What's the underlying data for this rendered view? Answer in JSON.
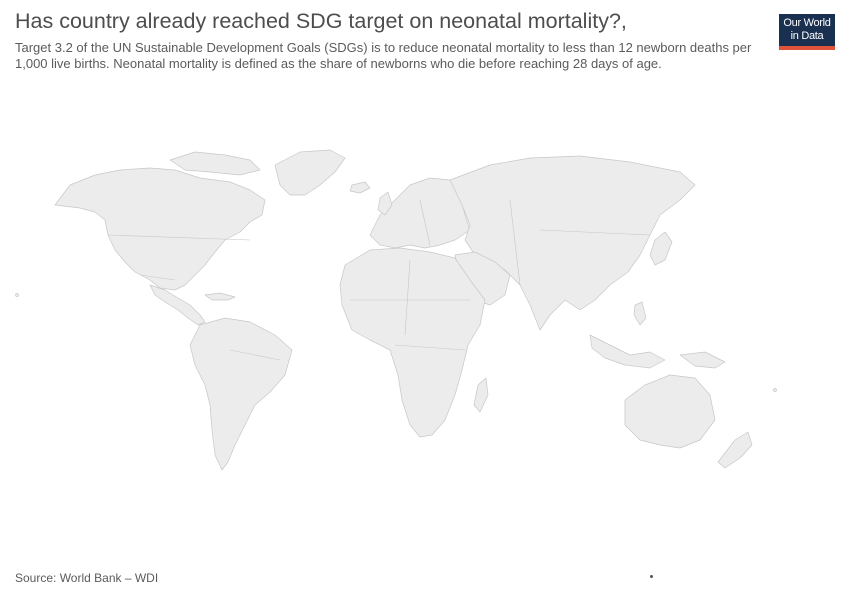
{
  "header": {
    "title": "Has country already reached SDG target on neonatal mortality?,",
    "subtitle": "Target 3.2 of the UN Sustainable Development Goals (SDGs) is to reduce neonatal mortality to less than 12 newborn deaths per 1,000 live births. Neonatal mortality is defined as the share of newborns who die before reaching 28 days of age."
  },
  "logo": {
    "line1": "Our World",
    "line2": "in Data",
    "colors": {
      "background": "#1a3050",
      "accent": "#e0533b"
    }
  },
  "map": {
    "land_color": "#ececec",
    "border_color": "#c7c7c7"
  },
  "footer": {
    "source": "Source: World Bank – WDI"
  }
}
